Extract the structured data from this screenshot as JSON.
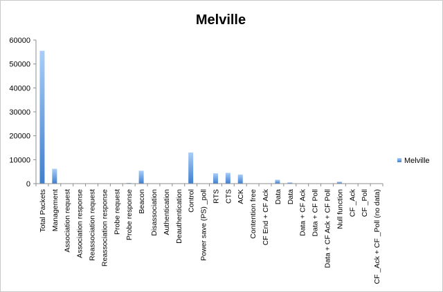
{
  "chart_data": {
    "type": "bar",
    "title": "Melville",
    "categories": [
      "Total Packets",
      "Management",
      "Association request",
      "Association response",
      "Reassociation request",
      "Reassociation response",
      "Probe request",
      "Probe response",
      "Beacon",
      "Disassociation",
      "Authentication",
      "Deauthentication",
      "Control",
      "Power save (PS) _poll",
      "RTS",
      "CTS",
      "ACK",
      "Contention free",
      "CF End + CF Ack",
      "Data",
      "Data",
      "Data + CF Ack",
      "Data + CF Poll",
      "Data + CF Ack + CF Poll",
      "Null function",
      "CF _Ack",
      "CF _Poll",
      "CF _Ack + CF _Poll (no data)"
    ],
    "series": [
      {
        "name": "Melville",
        "values": [
          55500,
          6200,
          0,
          0,
          50,
          0,
          0,
          300,
          5400,
          0,
          0,
          0,
          13000,
          0,
          4300,
          4500,
          3800,
          0,
          0,
          1600,
          500,
          0,
          0,
          0,
          800,
          0,
          0,
          0
        ]
      }
    ],
    "xlabel": "",
    "ylabel": "",
    "ylim": [
      0,
      60000
    ],
    "yticks": [
      0,
      10000,
      20000,
      30000,
      40000,
      50000,
      60000
    ],
    "ytick_labels": [
      "0",
      "10000",
      "20000",
      "30000",
      "40000",
      "50000",
      "60000"
    ],
    "grid": false,
    "legend_position": "right",
    "colors": {
      "bar_light": "#a9cdf7",
      "bar_dark": "#3f7fcf",
      "axis": "#8c8c8c"
    }
  }
}
